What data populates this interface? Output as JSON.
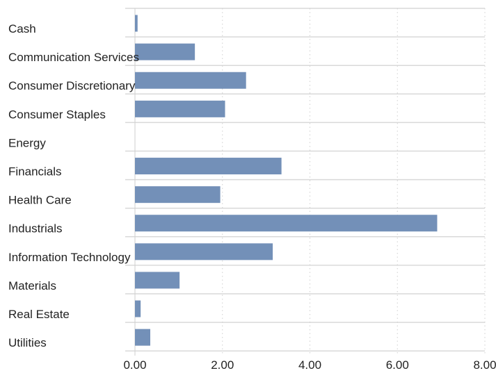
{
  "chart_data": {
    "type": "bar",
    "orientation": "horizontal",
    "categories": [
      "Cash",
      "Communication Services",
      "Consumer Discretionary",
      "Consumer Staples",
      "Energy",
      "Financials",
      "Health Care",
      "Industrials",
      "Information Technology",
      "Materials",
      "Real Estate",
      "Utilities"
    ],
    "values": [
      0.06,
      1.37,
      2.54,
      2.06,
      0.0,
      3.35,
      1.95,
      6.91,
      3.15,
      1.02,
      0.13,
      0.35
    ],
    "xlim": [
      0,
      8
    ],
    "x_ticks": [
      0,
      2,
      4,
      6,
      8
    ],
    "x_tick_labels": [
      "0.00",
      "2.00",
      "4.00",
      "6.00",
      "8.00"
    ],
    "title": "",
    "xlabel": "",
    "ylabel": "",
    "grid": "vertical dotted",
    "legend": "none",
    "colors": {
      "bar": "#7390b8",
      "separator": "#d9d9d9",
      "grid": "#cfcfcf",
      "text": "#222222"
    }
  }
}
